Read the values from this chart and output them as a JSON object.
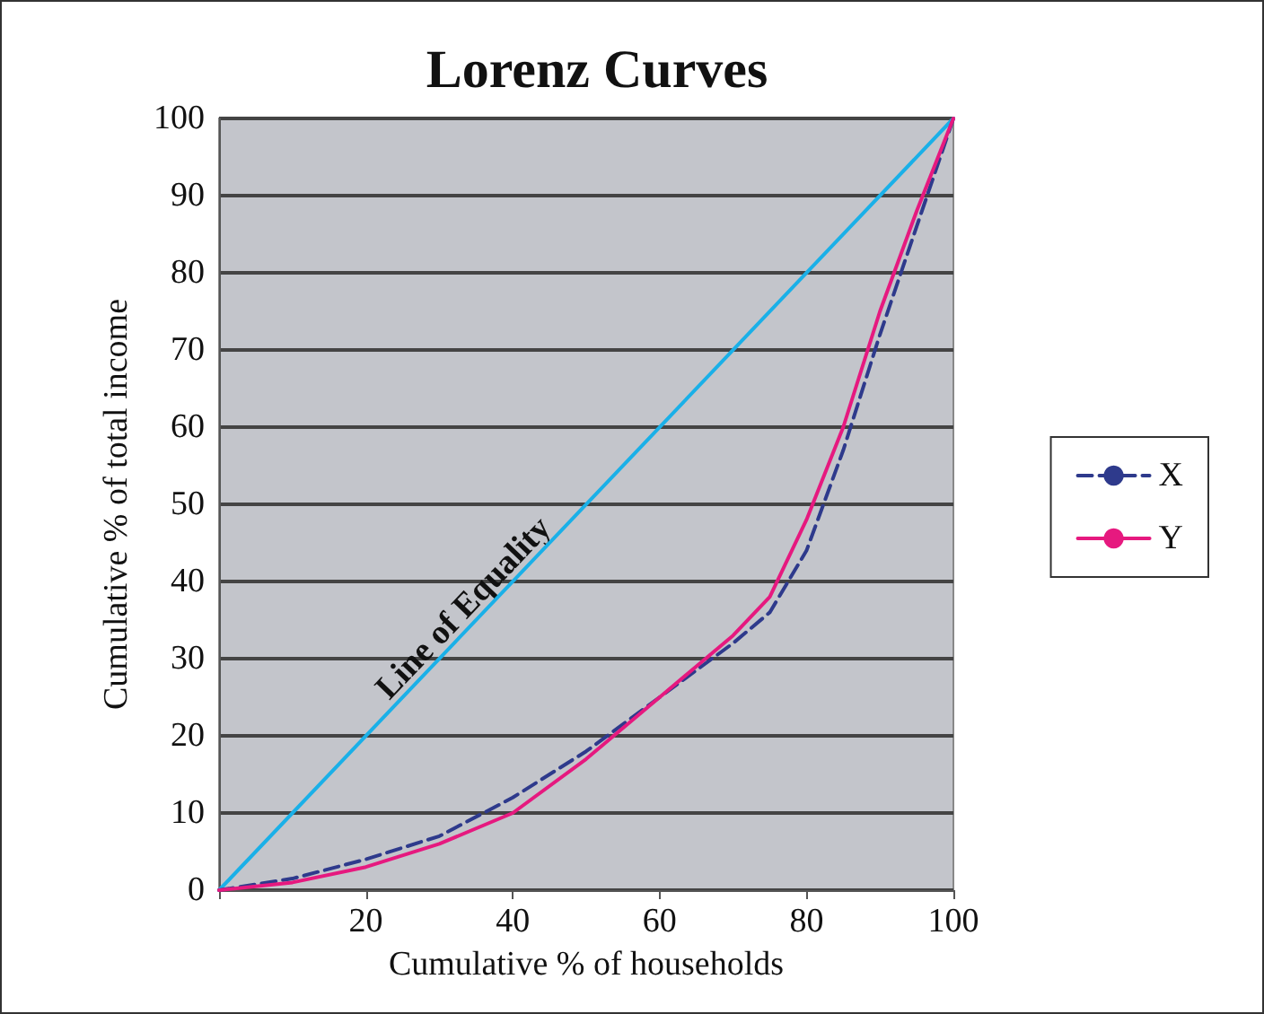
{
  "chart_data": {
    "type": "line",
    "title": "Lorenz Curves",
    "xlabel": "Cumulative % of households",
    "ylabel": "Cumulative % of total income",
    "xlim": [
      0,
      100
    ],
    "ylim": [
      0,
      100
    ],
    "xticks": [
      {
        "value": 0,
        "label": null
      },
      20,
      40,
      60,
      80,
      100
    ],
    "yticks": [
      0,
      10,
      20,
      30,
      40,
      50,
      60,
      70,
      80,
      90,
      100
    ],
    "grid": "y",
    "legend": "right",
    "marker": "none",
    "annotations": [
      {
        "text": "Line of Equality",
        "x": 35,
        "y": 35
      }
    ],
    "series": [
      {
        "color": "#1ab0e8",
        "line_style": "solid",
        "x": [
          0,
          100
        ],
        "values": [
          0,
          100
        ]
      },
      {
        "name": "X",
        "color": "#2e3a8c",
        "line_style": "dashed",
        "x": [
          0,
          10,
          20,
          30,
          40,
          50,
          60,
          70,
          75,
          80,
          85,
          90,
          95,
          100
        ],
        "values": [
          0,
          1.5,
          4,
          7,
          12,
          18,
          25,
          32,
          36,
          44,
          57,
          72,
          86,
          100
        ]
      },
      {
        "name": "Y",
        "color": "#e6197f",
        "line_style": "solid",
        "x": [
          0,
          10,
          20,
          30,
          40,
          50,
          60,
          70,
          75,
          80,
          85,
          90,
          95,
          100
        ],
        "values": [
          0,
          1,
          3,
          6,
          10,
          17,
          25,
          33,
          38,
          48,
          60,
          75,
          88,
          100
        ]
      }
    ]
  }
}
